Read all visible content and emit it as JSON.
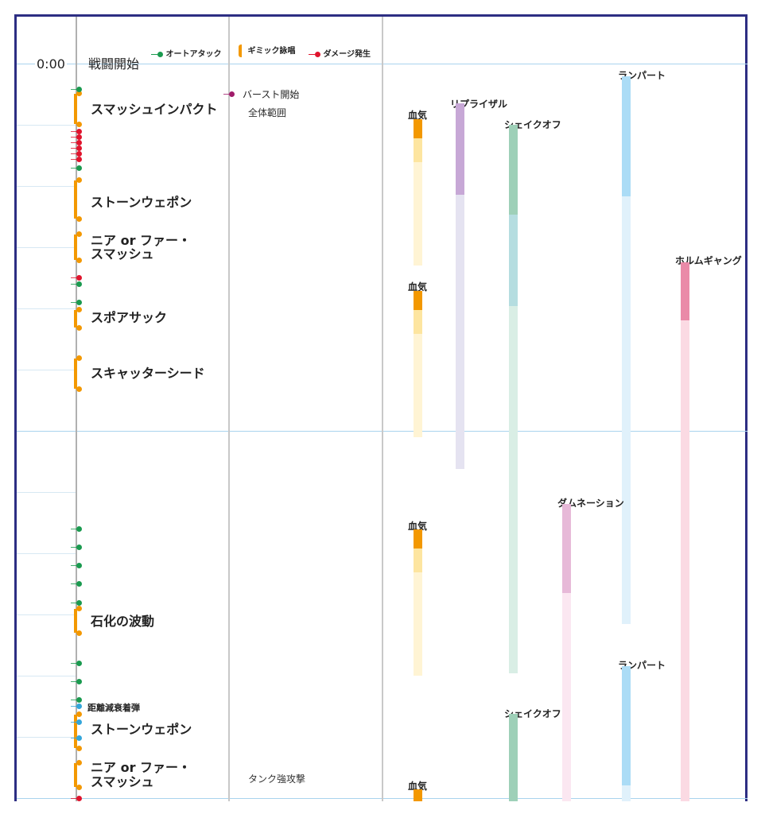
{
  "legend": {
    "auto_attack": "オートアタック",
    "gimmick": "ギミック詠唱",
    "damage": "ダメージ発生"
  },
  "time_start": "0:00",
  "events": {
    "start": "戦闘開始",
    "smash_impact": "スマッシュインパクト",
    "stone_weapon_1": "ストーンウェポン",
    "near_far_1_line1": "ニア or ファー・",
    "near_far_1_line2": "スマッシュ",
    "spore_sac": "スポアサック",
    "scatter_seed": "スキャッターシード",
    "petrify_wave": "石化の波動",
    "falloff_bullet": "距離減衰着弾",
    "stone_weapon_2": "ストーンウェポン",
    "near_far_2_line1": "ニア or ファー・",
    "near_far_2_line2": "スマッシュ"
  },
  "notes": {
    "burst_start": "バースト開始",
    "full_range": "全体範囲",
    "tank_strike": "タンク強攻撃"
  },
  "cooldowns": {
    "blood1": "血気",
    "blood2": "血気",
    "blood3": "血気",
    "blood4": "血気",
    "reprisal": "リプライザル",
    "shake_off_1": "シェイクオフ",
    "rampart_1": "ランパート",
    "holmgang": "ホルムギャング",
    "damnation": "ダムネーション",
    "rampart_2": "ランパート",
    "shake_off_2": "シェイクオフ"
  },
  "colors": {
    "frame": "#2d2e83",
    "gimmick": "#f39800",
    "auto_attack": "#1a9a4f",
    "damage": "#e0142d"
  }
}
